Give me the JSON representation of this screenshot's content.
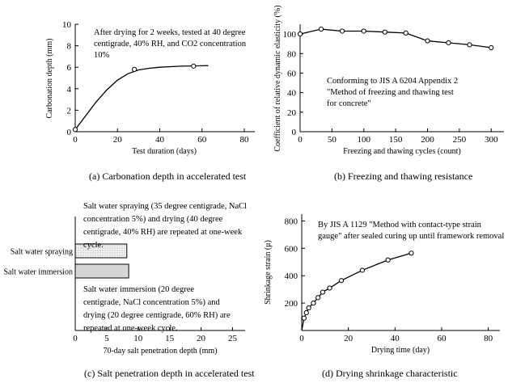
{
  "chart_data": [
    {
      "id": "a",
      "type": "line",
      "caption": "(a)  Carbonation depth in accelerated test",
      "xlabel": "Test duration (days)",
      "ylabel": "Carbonation depth (mm)",
      "xlim": [
        0,
        85
      ],
      "ylim": [
        0,
        10
      ],
      "xticks": [
        0,
        20,
        40,
        60,
        80
      ],
      "yticks": [
        0,
        2,
        4,
        6,
        8,
        10
      ],
      "note": [
        "After drying for 2 weeks, tested at 40 degree",
        "centigrade, 40% RH, and CO2 concentration",
        "10%"
      ],
      "points": [
        {
          "x": 0,
          "y": 0.2
        },
        {
          "x": 28,
          "y": 5.8
        },
        {
          "x": 56,
          "y": 6.1
        }
      ],
      "curve": [
        [
          0,
          0.2
        ],
        [
          5,
          1.5
        ],
        [
          10,
          2.8
        ],
        [
          15,
          3.9
        ],
        [
          20,
          4.8
        ],
        [
          25,
          5.4
        ],
        [
          30,
          5.75
        ],
        [
          35,
          5.9
        ],
        [
          40,
          6.0
        ],
        [
          50,
          6.1
        ],
        [
          63,
          6.15
        ]
      ]
    },
    {
      "id": "b",
      "type": "line",
      "caption": "(b)  Freezing and thawing resistance",
      "xlabel": "Freezing and thawing cycles (count)",
      "ylabel": "Coefficient of relative dynamic elasticity (%)",
      "xlim": [
        0,
        320
      ],
      "ylim": [
        0,
        110
      ],
      "xticks": [
        0,
        50,
        100,
        150,
        200,
        250,
        300
      ],
      "yticks": [
        0,
        20,
        40,
        60,
        80,
        100
      ],
      "note": [
        "Conforming to JIS A 6204 Appendix 2",
        "\"Method of freezing and thawing test",
        "for concrete\""
      ],
      "points": [
        {
          "x": 0,
          "y": 100
        },
        {
          "x": 33,
          "y": 105
        },
        {
          "x": 66,
          "y": 103
        },
        {
          "x": 100,
          "y": 103
        },
        {
          "x": 133,
          "y": 102
        },
        {
          "x": 166,
          "y": 101
        },
        {
          "x": 200,
          "y": 93
        },
        {
          "x": 233,
          "y": 91
        },
        {
          "x": 266,
          "y": 89
        },
        {
          "x": 300,
          "y": 86
        }
      ]
    },
    {
      "id": "c",
      "type": "bar",
      "orientation": "horizontal",
      "caption": "(c)  Salt penetration depth in accelerated test",
      "xlabel": "70-day salt penetration depth (mm)",
      "xlim": [
        0,
        27
      ],
      "xticks": [
        0,
        5,
        10,
        15,
        20,
        25
      ],
      "categories": [
        "Salt water spraying",
        "Salt water immersion"
      ],
      "values": [
        8.2,
        8.5
      ],
      "note_top": [
        "Salt water spraying (35 degree centigrade, NaCl",
        "concentration 5%) and drying (40 degree",
        "centigrade, 40% RH) are repeated at one-week",
        "cycle."
      ],
      "note_bottom": [
        "Salt water immersion (20 degree",
        "centigrade, NaCl concentration 5%) and",
        "drying (20 degree centigrade, 60% RH) are",
        "repeated at one-week cycle."
      ]
    },
    {
      "id": "d",
      "type": "line",
      "caption": "(d)  Drying shrinkage characteristic",
      "xlabel": "Drying time (day)",
      "ylabel": "Shrinkage strain (μ)",
      "xlim": [
        0,
        85
      ],
      "ylim": [
        0,
        850
      ],
      "xticks": [
        0,
        20,
        40,
        60,
        80
      ],
      "yticks": [
        200,
        400,
        600,
        800
      ],
      "note": [
        "By JIS A 1129 \"Method with contact-type strain",
        "gauge\" after sealed curing up until framework removal"
      ],
      "points": [
        {
          "x": 1,
          "y": 90
        },
        {
          "x": 2,
          "y": 130
        },
        {
          "x": 3,
          "y": 165
        },
        {
          "x": 5,
          "y": 200
        },
        {
          "x": 7,
          "y": 240
        },
        {
          "x": 9,
          "y": 280
        },
        {
          "x": 12,
          "y": 310
        },
        {
          "x": 17,
          "y": 365
        },
        {
          "x": 26,
          "y": 440
        },
        {
          "x": 37,
          "y": 515
        },
        {
          "x": 47,
          "y": 565
        }
      ],
      "curve": [
        [
          0,
          0
        ],
        [
          1,
          90
        ],
        [
          2,
          130
        ],
        [
          3,
          165
        ],
        [
          5,
          200
        ],
        [
          7,
          240
        ],
        [
          9,
          280
        ],
        [
          12,
          310
        ],
        [
          17,
          365
        ],
        [
          26,
          440
        ],
        [
          37,
          515
        ],
        [
          47,
          565
        ]
      ]
    }
  ]
}
